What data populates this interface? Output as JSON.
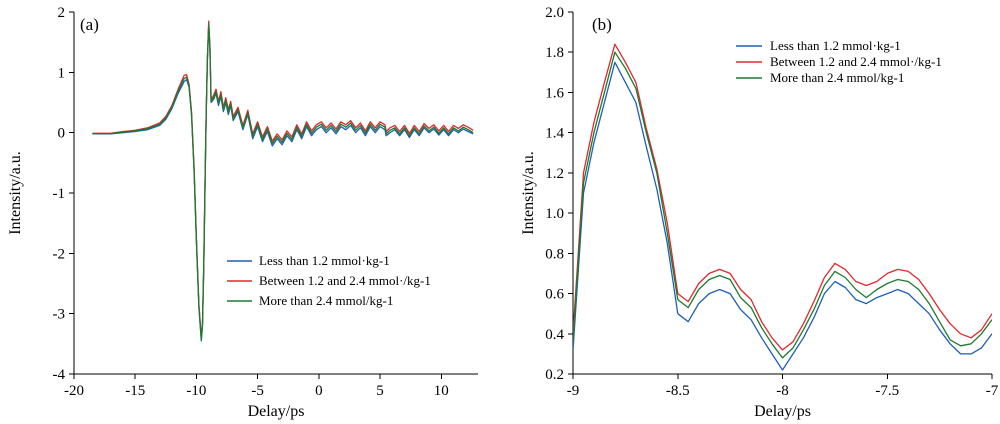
{
  "chart_data": [
    {
      "type": "line",
      "panel_label": "(a)",
      "xlabel": "Delay/ps",
      "ylabel": "Intensity/a.u.",
      "xlim": [
        -20,
        13
      ],
      "ylim": [
        -4,
        2
      ],
      "xticks": [
        -20,
        -15,
        -10,
        -5,
        0,
        5,
        10
      ],
      "yticks": [
        -4,
        -3,
        -2,
        -1,
        0,
        1,
        2
      ],
      "tick_labels_x": [
        "-20",
        "-15",
        "-10",
        "-5",
        "0",
        "5",
        "10"
      ],
      "tick_labels_y": [
        "-4",
        "-3",
        "-2",
        "-1",
        "0",
        "1",
        "2"
      ],
      "legend_position": "lower-right",
      "x": [
        -18.5,
        -17,
        -16,
        -15,
        -14,
        -13,
        -12.5,
        -12,
        -11.5,
        -11,
        -10.8,
        -10.6,
        -10.4,
        -10.2,
        -10,
        -9.8,
        -9.6,
        -9.5,
        -9.4,
        -9.3,
        -9.2,
        -9.1,
        -9.0,
        -8.9,
        -8.8,
        -8.6,
        -8.4,
        -8.2,
        -8.0,
        -7.8,
        -7.6,
        -7.4,
        -7.2,
        -7.0,
        -6.6,
        -6.2,
        -5.8,
        -5.4,
        -5.0,
        -4.6,
        -4.2,
        -3.8,
        -3.4,
        -3.0,
        -2.6,
        -2.2,
        -1.8,
        -1.4,
        -1.0,
        -0.6,
        -0.2,
        0.2,
        0.6,
        1.0,
        1.4,
        1.8,
        2.2,
        2.6,
        3.0,
        3.4,
        3.8,
        4.2,
        4.6,
        5.0,
        5.4,
        5.5,
        5.8,
        6.2,
        6.6,
        7.0,
        7.4,
        7.8,
        8.2,
        8.6,
        9.0,
        9.4,
        9.8,
        10.2,
        10.6,
        11.0,
        11.4,
        11.8,
        12.2,
        12.6
      ],
      "series": [
        {
          "name": "Less than 1.2 mmol·kg-1",
          "color": "#1f5fb4",
          "values": [
            -0.02,
            -0.02,
            0.0,
            0.02,
            0.05,
            0.12,
            0.22,
            0.4,
            0.65,
            0.85,
            0.88,
            0.75,
            0.3,
            -0.6,
            -1.8,
            -2.9,
            -3.45,
            -3.2,
            -2.2,
            -0.9,
            0.3,
            1.2,
            1.75,
            1.4,
            0.5,
            0.55,
            0.65,
            0.45,
            0.6,
            0.35,
            0.5,
            0.3,
            0.45,
            0.2,
            0.35,
            0.05,
            0.3,
            -0.1,
            0.1,
            -0.15,
            0.02,
            -0.22,
            -0.1,
            -0.2,
            -0.05,
            -0.15,
            0.05,
            -0.1,
            0.1,
            -0.05,
            0.05,
            0.1,
            0.0,
            0.08,
            -0.02,
            0.1,
            0.05,
            0.12,
            0.0,
            0.08,
            -0.05,
            0.1,
            0.0,
            0.1,
            0.05,
            -0.05,
            0.0,
            0.05,
            -0.05,
            0.05,
            -0.08,
            0.05,
            -0.05,
            0.08,
            0.0,
            0.06,
            -0.04,
            0.05,
            -0.05,
            0.05,
            0.0,
            0.06,
            0.02,
            -0.02
          ]
        },
        {
          "name": "Between 1.2 and 2.4 mmol·/kg-1",
          "color": "#e0282e",
          "values": [
            -0.01,
            -0.01,
            0.02,
            0.04,
            0.08,
            0.16,
            0.27,
            0.45,
            0.72,
            0.95,
            0.96,
            0.8,
            0.35,
            -0.55,
            -1.75,
            -2.85,
            -3.4,
            -3.15,
            -2.15,
            -0.85,
            0.35,
            1.25,
            1.85,
            1.45,
            0.55,
            0.62,
            0.72,
            0.52,
            0.68,
            0.42,
            0.58,
            0.38,
            0.52,
            0.27,
            0.42,
            0.12,
            0.37,
            -0.02,
            0.18,
            -0.07,
            0.1,
            -0.14,
            -0.02,
            -0.12,
            0.03,
            -0.07,
            0.13,
            -0.02,
            0.18,
            0.03,
            0.13,
            0.18,
            0.08,
            0.16,
            0.06,
            0.18,
            0.13,
            0.2,
            0.08,
            0.16,
            0.03,
            0.18,
            0.08,
            0.18,
            0.13,
            0.02,
            0.08,
            0.12,
            0.02,
            0.12,
            -0.01,
            0.12,
            0.02,
            0.15,
            0.07,
            0.13,
            0.03,
            0.12,
            0.02,
            0.12,
            0.07,
            0.13,
            0.09,
            0.04
          ]
        },
        {
          "name": "More than 2.4 mmol/kg-1",
          "color": "#1e7a2e",
          "values": [
            -0.015,
            -0.015,
            0.01,
            0.03,
            0.065,
            0.14,
            0.245,
            0.425,
            0.685,
            0.9,
            0.92,
            0.775,
            0.32,
            -0.58,
            -1.78,
            -2.88,
            -3.43,
            -3.18,
            -2.18,
            -0.88,
            0.32,
            1.22,
            1.8,
            1.42,
            0.52,
            0.58,
            0.68,
            0.48,
            0.64,
            0.38,
            0.54,
            0.34,
            0.48,
            0.23,
            0.38,
            0.08,
            0.33,
            -0.06,
            0.14,
            -0.11,
            0.06,
            -0.18,
            -0.06,
            -0.16,
            -0.01,
            -0.11,
            0.09,
            -0.06,
            0.14,
            -0.01,
            0.09,
            0.14,
            0.04,
            0.12,
            0.02,
            0.14,
            0.09,
            0.16,
            0.04,
            0.12,
            -0.01,
            0.14,
            0.04,
            0.14,
            0.09,
            -0.02,
            0.04,
            0.08,
            -0.02,
            0.08,
            -0.05,
            0.08,
            -0.02,
            0.11,
            0.03,
            0.09,
            -0.01,
            0.08,
            -0.02,
            0.08,
            0.03,
            0.09,
            0.05,
            0.0
          ]
        }
      ]
    },
    {
      "type": "line",
      "panel_label": "(b)",
      "xlabel": "Delay/ps",
      "ylabel": "Intensity/a.u.",
      "xlim": [
        -9,
        -7
      ],
      "ylim": [
        0.2,
        2.0
      ],
      "xticks": [
        -9,
        -8.5,
        -8,
        -7.5,
        -7
      ],
      "yticks": [
        0.2,
        0.4,
        0.6,
        0.8,
        1.0,
        1.2,
        1.4,
        1.6,
        1.8,
        2.0
      ],
      "tick_labels_x": [
        "-9",
        "-8.5",
        "-8",
        "-7.5",
        "-7"
      ],
      "tick_labels_y": [
        "0.2",
        "0.4",
        "0.6",
        "0.8",
        "1.0",
        "1.2",
        "1.4",
        "1.6",
        "1.8",
        "2.0"
      ],
      "legend_position": "top-right",
      "x": [
        -9.0,
        -8.95,
        -8.9,
        -8.85,
        -8.8,
        -8.75,
        -8.7,
        -8.65,
        -8.6,
        -8.55,
        -8.5,
        -8.45,
        -8.4,
        -8.35,
        -8.3,
        -8.25,
        -8.2,
        -8.15,
        -8.1,
        -8.05,
        -8.0,
        -7.95,
        -7.9,
        -7.85,
        -7.8,
        -7.75,
        -7.7,
        -7.65,
        -7.6,
        -7.55,
        -7.5,
        -7.45,
        -7.4,
        -7.35,
        -7.3,
        -7.25,
        -7.2,
        -7.15,
        -7.1,
        -7.05,
        -7.0
      ],
      "series": [
        {
          "name": "Less than 1.2 mmol·kg-1",
          "color": "#1f5fb4",
          "values": [
            0.32,
            1.1,
            1.35,
            1.55,
            1.75,
            1.65,
            1.55,
            1.33,
            1.12,
            0.85,
            0.5,
            0.46,
            0.55,
            0.6,
            0.62,
            0.6,
            0.52,
            0.47,
            0.38,
            0.3,
            0.22,
            0.3,
            0.38,
            0.48,
            0.6,
            0.66,
            0.63,
            0.57,
            0.55,
            0.58,
            0.6,
            0.62,
            0.6,
            0.55,
            0.5,
            0.42,
            0.35,
            0.3,
            0.3,
            0.33,
            0.4
          ]
        },
        {
          "name": "Between 1.2 and 2.4 mmol·/kg-1",
          "color": "#e0282e",
          "values": [
            0.4,
            1.2,
            1.45,
            1.65,
            1.84,
            1.75,
            1.65,
            1.42,
            1.22,
            0.95,
            0.6,
            0.56,
            0.65,
            0.7,
            0.72,
            0.7,
            0.62,
            0.57,
            0.46,
            0.38,
            0.32,
            0.36,
            0.45,
            0.56,
            0.68,
            0.75,
            0.72,
            0.66,
            0.64,
            0.66,
            0.7,
            0.72,
            0.71,
            0.67,
            0.6,
            0.52,
            0.45,
            0.4,
            0.38,
            0.42,
            0.5
          ]
        },
        {
          "name": "More than 2.4 mmol/kg-1",
          "color": "#1e7a2e",
          "values": [
            0.36,
            1.15,
            1.4,
            1.6,
            1.8,
            1.72,
            1.62,
            1.4,
            1.2,
            0.9,
            0.57,
            0.53,
            0.62,
            0.67,
            0.69,
            0.67,
            0.58,
            0.53,
            0.43,
            0.35,
            0.28,
            0.33,
            0.42,
            0.52,
            0.64,
            0.71,
            0.68,
            0.62,
            0.58,
            0.62,
            0.65,
            0.67,
            0.66,
            0.62,
            0.55,
            0.46,
            0.37,
            0.34,
            0.35,
            0.4,
            0.47
          ]
        }
      ]
    }
  ]
}
